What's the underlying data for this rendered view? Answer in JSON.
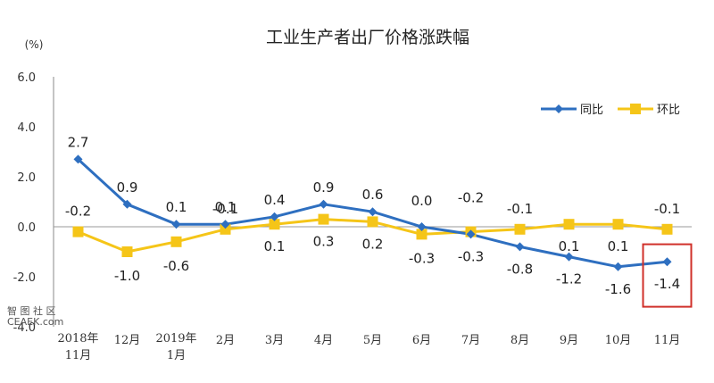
{
  "chart_data": {
    "type": "line",
    "title": "工业生产者出厂价格涨跌幅",
    "unit_label": "(%)",
    "categories": [
      [
        "2018年",
        "11月"
      ],
      [
        "12月"
      ],
      [
        "2019年",
        "1月"
      ],
      [
        "2月"
      ],
      [
        "3月"
      ],
      [
        "4月"
      ],
      [
        "5月"
      ],
      [
        "6月"
      ],
      [
        "7月"
      ],
      [
        "8月"
      ],
      [
        "9月"
      ],
      [
        "10月"
      ],
      [
        "11月"
      ]
    ],
    "ylim": [
      -4.0,
      6.0
    ],
    "yticks": [
      "6.0",
      "4.0",
      "2.0",
      "0.0",
      "-2.0",
      "-4.0"
    ],
    "ytick_values": [
      6,
      4,
      2,
      0,
      -2,
      -4
    ],
    "grid": false,
    "legend_position": "top-right",
    "series": [
      {
        "name": "同比",
        "color": "#2e6fc0",
        "marker": "diamond",
        "values": [
          2.7,
          0.9,
          0.1,
          0.1,
          0.4,
          0.9,
          0.6,
          0.0,
          -0.3,
          -0.8,
          -1.2,
          -1.6,
          -1.4
        ],
        "labels": [
          "2.7",
          "0.9",
          "0.1",
          "0.1",
          "0.4",
          "0.9",
          "0.6",
          "0.0",
          "-0.3",
          "-0.8",
          "-1.2",
          "-1.6",
          "-1.4"
        ]
      },
      {
        "name": "环比",
        "color": "#f5c518",
        "marker": "square",
        "values": [
          -0.2,
          -1.0,
          -0.6,
          -0.1,
          0.1,
          0.3,
          0.2,
          -0.3,
          -0.2,
          -0.1,
          0.1,
          0.1,
          -0.1
        ],
        "labels": [
          "-0.2",
          "-1.0",
          "-0.6",
          "-0.1",
          "0.1",
          "0.3",
          "0.2",
          "-0.3",
          "-0.2",
          "-0.1",
          "0.1",
          "0.1",
          "-0.1"
        ]
      }
    ],
    "highlight": {
      "category_index": 12,
      "color": "#d0302a"
    }
  },
  "watermark": {
    "line1": "智 图 社 区",
    "line2": "CEAEK.com"
  }
}
